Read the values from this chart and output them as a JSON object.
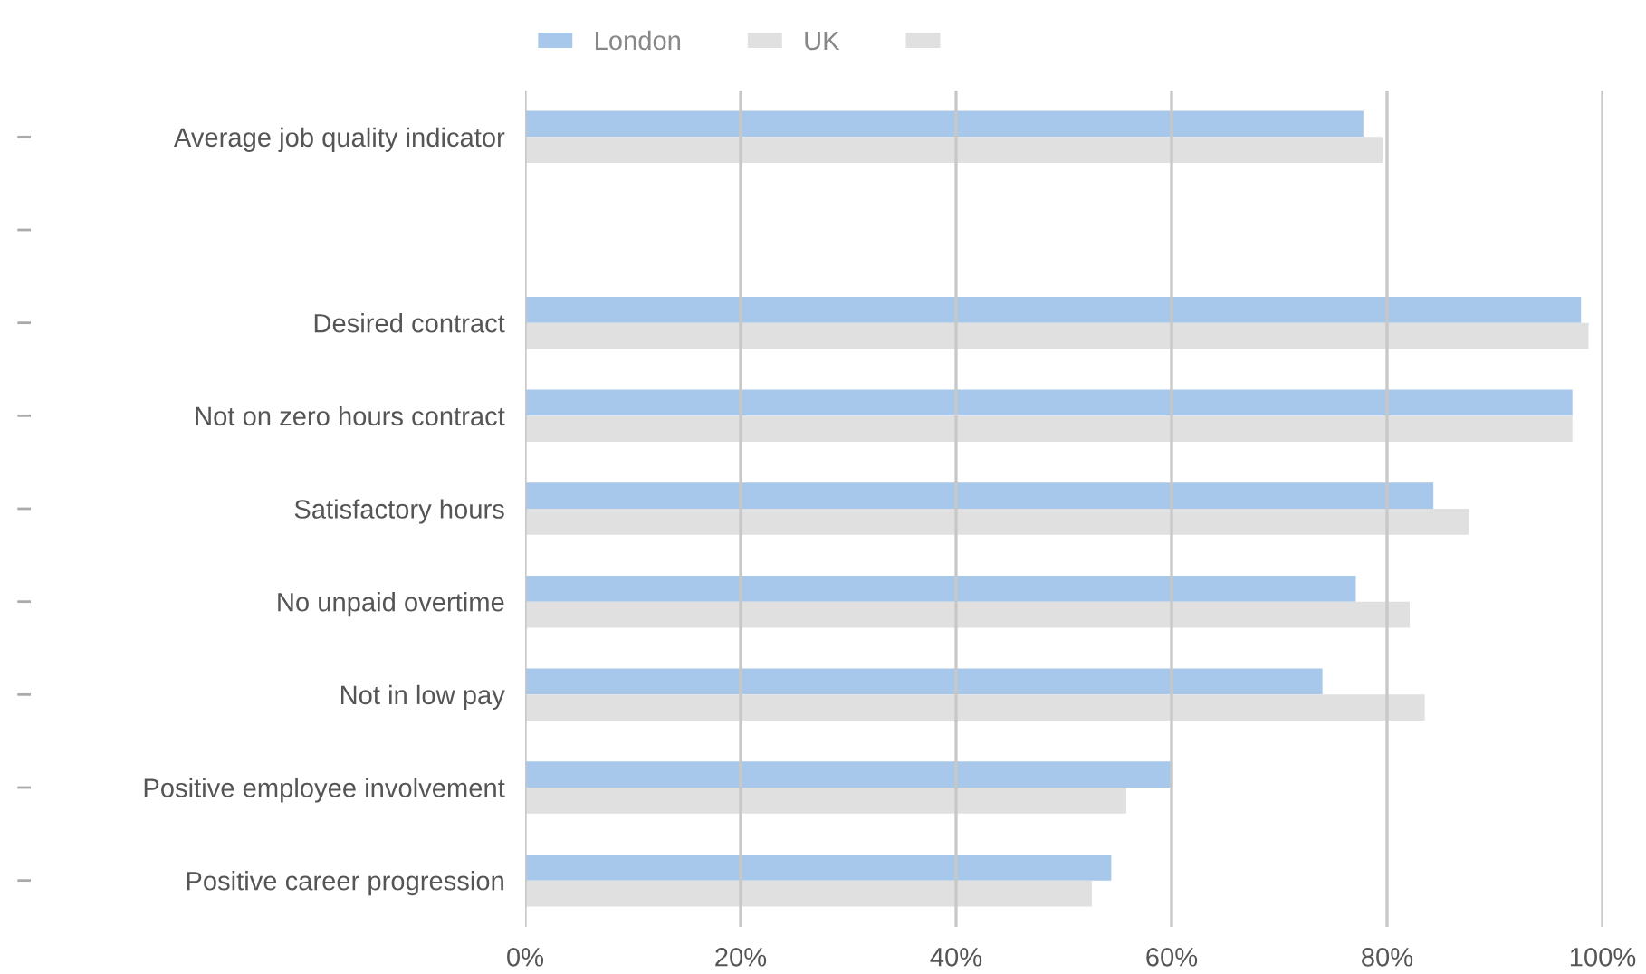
{
  "chart_data": {
    "type": "bar",
    "orientation": "horizontal",
    "categories": [
      "Average job quality indicator",
      null,
      "Desired contract",
      "Not on zero hours contract",
      "Satisfactory hours",
      "No unpaid overtime",
      "Not in low pay",
      "Positive employee involvement",
      "Positive career progression"
    ],
    "series": [
      {
        "name": "London",
        "color": "#a7c8ea",
        "values": [
          77.8,
          null,
          98.0,
          97.2,
          84.3,
          77.1,
          74.0,
          60.1,
          54.4
        ]
      },
      {
        "name": "UK",
        "color": "#e0e0e0",
        "values": [
          79.6,
          null,
          98.7,
          97.2,
          87.6,
          82.1,
          83.5,
          55.8,
          52.6
        ]
      },
      {
        "color": "#e0e0e0",
        "values": [
          null,
          null,
          null,
          null,
          null,
          null,
          null,
          null,
          null
        ]
      }
    ],
    "xlim": [
      0,
      100
    ],
    "xticks": [
      {
        "value": 0,
        "label": "0%"
      },
      {
        "value": 20,
        "label": "20%"
      },
      {
        "value": 40,
        "label": "40%"
      },
      {
        "value": 60,
        "label": "60%"
      },
      {
        "value": 80,
        "label": "80%"
      },
      {
        "value": 100,
        "label": "100%"
      }
    ],
    "grid": "x",
    "legend": "top"
  }
}
